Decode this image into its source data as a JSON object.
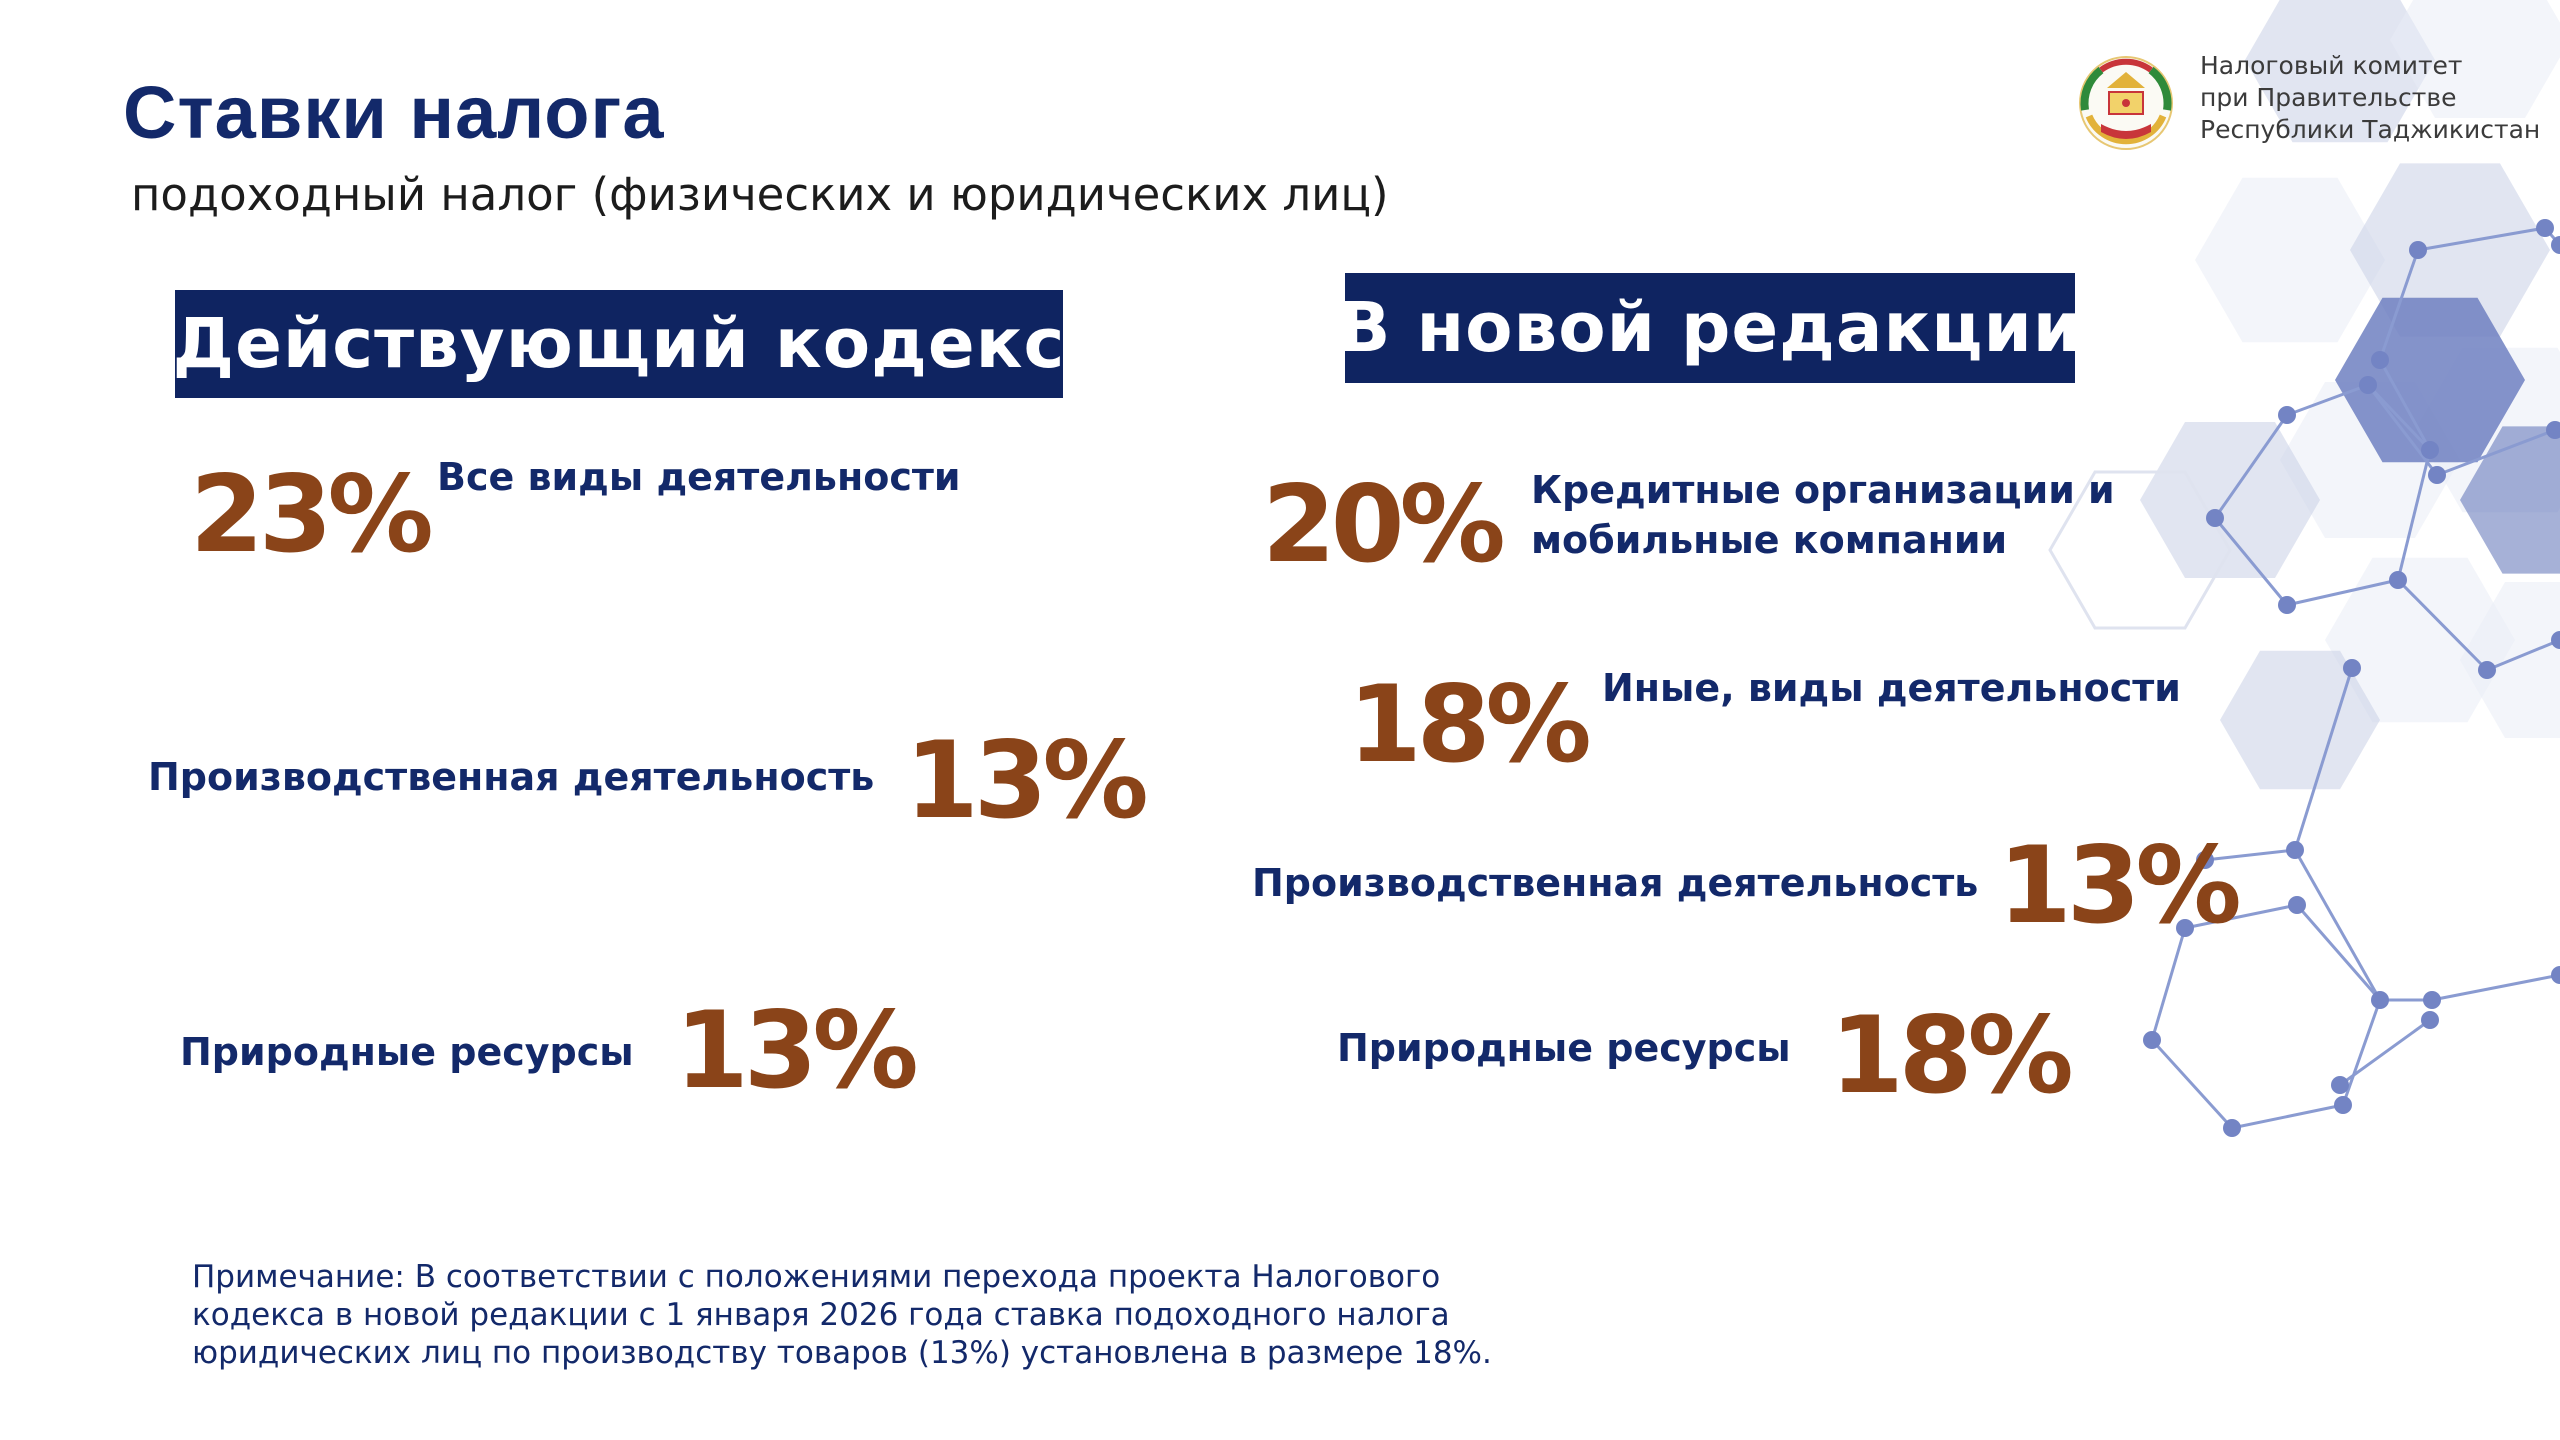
{
  "header": {
    "title": "Ставки налога",
    "subtitle": "подоходный налог (физических и юридических лиц)"
  },
  "organization": {
    "emblem": "tajikistan-state-emblem",
    "lines": [
      "Налоговый комитет",
      "при Правительстве",
      "Республики Таджикистан"
    ]
  },
  "current_code": {
    "heading": "Действующий кодекс",
    "items": [
      {
        "rate": "23%",
        "label": "Все виды деятельности"
      },
      {
        "rate": "13%",
        "label": "Производственная деятельность"
      },
      {
        "rate": "13%",
        "label": "Природные ресурсы"
      }
    ]
  },
  "new_edition": {
    "heading": "В новой редакции",
    "items": [
      {
        "rate": "20%",
        "label_lines": [
          "Кредитные организации и",
          "мобильные компании"
        ]
      },
      {
        "rate": "18%",
        "label": "Иные, виды деятельности"
      },
      {
        "rate": "13%",
        "label": "Производственная деятельность"
      },
      {
        "rate": "18%",
        "label": "Природные ресурсы"
      }
    ]
  },
  "note": {
    "lines": [
      "Примечание: В соответствии с положениями перехода проекта Налогового",
      "кодекса в новой редакции с 1 января 2026 года ставка подоходного налога",
      "юридических лиц по производству товаров (13%) установлена в размере 18%."
    ]
  },
  "colors": {
    "navy": "#0f2461",
    "heading": "#13296a",
    "rate": "#8a4419",
    "hex_light": "#e9ecf5",
    "hex_mid": "#c9cfe6",
    "network": "#7f90cc"
  }
}
